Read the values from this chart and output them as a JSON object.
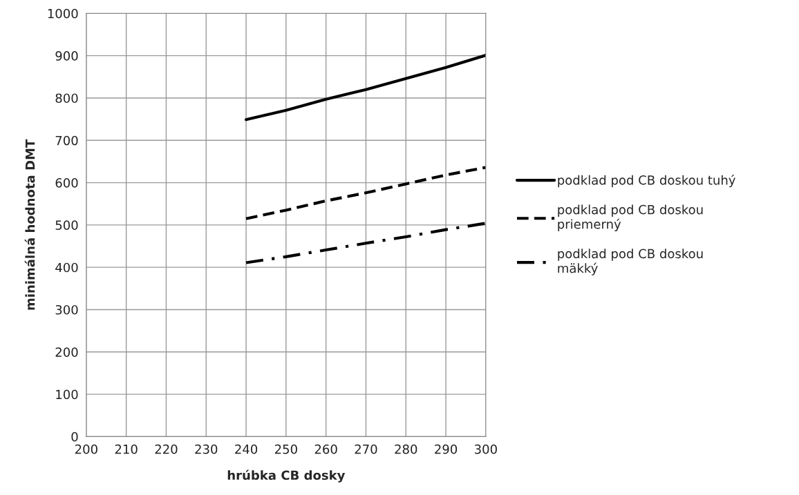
{
  "chart_data": {
    "type": "line",
    "xlabel": "hrúbka CB dosky",
    "ylabel": "minimálná hodnota DMT",
    "x": [
      240,
      250,
      260,
      270,
      280,
      290,
      300
    ],
    "series": [
      {
        "name": "podklad pod CB doskou tuhý",
        "color": "#000000",
        "line_style": "solid",
        "values": [
          749,
          771,
          797,
          820,
          846,
          872,
          901
        ]
      },
      {
        "name": "podklad pod CB doskou priemerný",
        "color": "#000000",
        "line_style": "dashed",
        "values": [
          515,
          535,
          557,
          576,
          597,
          618,
          636
        ]
      },
      {
        "name": "podklad pod CB doskou mäkký",
        "color": "#000000",
        "line_style": "dashdot",
        "values": [
          411,
          425,
          441,
          457,
          472,
          489,
          504
        ]
      }
    ],
    "xlim": [
      200,
      300
    ],
    "xticks": [
      200,
      210,
      220,
      230,
      240,
      250,
      260,
      270,
      280,
      290,
      300
    ],
    "ylim": [
      0,
      1000
    ],
    "yticks": [
      0,
      100,
      200,
      300,
      400,
      500,
      600,
      700,
      800,
      900,
      1000
    ],
    "grid": true,
    "legend": "right",
    "marker": "none"
  }
}
